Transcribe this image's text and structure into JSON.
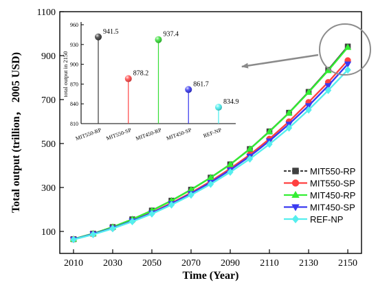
{
  "chart_data": [
    {
      "type": "line",
      "title": "",
      "xlabel": "Time (Year)",
      "ylabel": "Total output (trillion， 2005 USD)",
      "xlim": [
        2003,
        2157
      ],
      "ylim": [
        0,
        1100
      ],
      "xticks": [
        2010,
        2030,
        2050,
        2070,
        2090,
        2110,
        2130,
        2150
      ],
      "yticks": [
        100,
        300,
        500,
        700,
        900,
        1100
      ],
      "grid": false,
      "legend_position": "bottom-right",
      "x": [
        2010,
        2020,
        2030,
        2040,
        2050,
        2060,
        2070,
        2080,
        2090,
        2100,
        2110,
        2120,
        2130,
        2140,
        2150
      ],
      "series": [
        {
          "name": "MIT550-RP",
          "color": "#404040",
          "marker": "square",
          "values": [
            65,
            90,
            120,
            155,
            195,
            240,
            290,
            345,
            405,
            475,
            555,
            640,
            735,
            835,
            941.5
          ]
        },
        {
          "name": "MIT550-SP",
          "color": "#ff4040",
          "marker": "circle",
          "values": [
            64,
            88,
            116,
            149,
            186,
            229,
            276,
            328,
            386,
            449,
            521,
            600,
            688,
            779,
            878.2
          ]
        },
        {
          "name": "MIT450-RP",
          "color": "#33ee33",
          "marker": "triangle-up",
          "values": [
            65,
            90,
            120,
            155,
            195,
            240,
            290,
            345,
            405,
            475,
            554,
            639,
            733,
            832,
            937.4
          ]
        },
        {
          "name": "MIT450-SP",
          "color": "#3a3af0",
          "marker": "triangle-down",
          "values": [
            64,
            88,
            115,
            148,
            184,
            226,
            272,
            323,
            380,
            442,
            512,
            588,
            672,
            763,
            861.7
          ]
        },
        {
          "name": "REF-NP",
          "color": "#55eeee",
          "marker": "diamond",
          "values": [
            63,
            86,
            113,
            145,
            180,
            221,
            266,
            315,
            370,
            430,
            497,
            571,
            653,
            742,
            834.9
          ]
        }
      ]
    },
    {
      "type": "bar",
      "style": "lollipop",
      "title": "",
      "xlabel": "",
      "ylabel": "total output in 2150",
      "ylim": [
        810,
        960
      ],
      "yticks": [
        810,
        840,
        870,
        900,
        930,
        960
      ],
      "categories": [
        "MIT550-RP",
        "MIT550-SP",
        "MIT450-RP",
        "MIT450-SP",
        "REF-NP"
      ],
      "values": [
        941.5,
        878.2,
        937.4,
        861.7,
        834.9
      ],
      "labels": [
        "941.5",
        "878.2",
        "937.4",
        "861.7",
        "834.9"
      ],
      "colors": [
        "#3a3a3a",
        "#ff4444",
        "#33dd33",
        "#3333ee",
        "#44eeee"
      ]
    }
  ]
}
